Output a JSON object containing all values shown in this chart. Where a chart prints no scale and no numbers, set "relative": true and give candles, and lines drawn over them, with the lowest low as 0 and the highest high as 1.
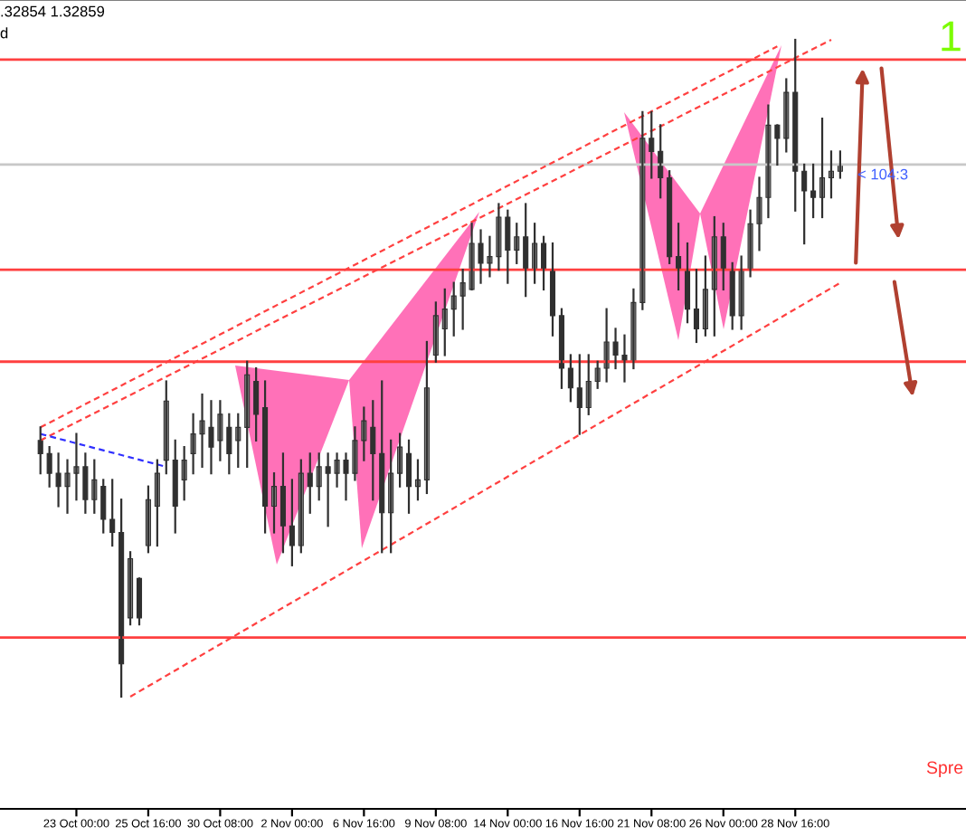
{
  "chart_data": {
    "type": "candlestick",
    "relative": true,
    "color": "#303030",
    "categories": [
      null,
      null,
      null,
      null,
      "23 Oct 00:00",
      null,
      null,
      null,
      null,
      null,
      null,
      null,
      "25 Oct 16:00",
      null,
      null,
      null,
      null,
      null,
      null,
      null,
      "30 Oct 08:00",
      null,
      null,
      null,
      null,
      null,
      null,
      null,
      "2 Nov 00:00",
      null,
      null,
      null,
      null,
      null,
      null,
      null,
      "6 Nov 16:00",
      null,
      null,
      null,
      null,
      null,
      null,
      null,
      "9 Nov 08:00",
      null,
      null,
      null,
      null,
      null,
      null,
      null,
      "14 Nov 00:00",
      null,
      null,
      null,
      null,
      null,
      null,
      null,
      "16 Nov 16:00",
      null,
      null,
      null,
      null,
      null,
      null,
      null,
      "21 Nov 08:00",
      null,
      null,
      null,
      null,
      null,
      null,
      null,
      "26 Nov 00:00",
      null,
      null,
      null,
      null,
      null,
      null,
      null,
      "28 Nov 16:00",
      null,
      null,
      null,
      null,
      null
    ],
    "ohlc": [
      [
        0.39,
        0.41,
        0.34,
        0.37
      ],
      [
        0.37,
        0.38,
        0.32,
        0.34
      ],
      [
        0.34,
        0.37,
        0.29,
        0.32
      ],
      [
        0.32,
        0.36,
        0.28,
        0.34
      ],
      [
        0.34,
        0.4,
        0.3,
        0.35
      ],
      [
        0.35,
        0.37,
        0.28,
        0.3
      ],
      [
        0.3,
        0.36,
        0.28,
        0.33
      ],
      [
        0.32,
        0.33,
        0.25,
        0.27
      ],
      [
        0.27,
        0.33,
        0.23,
        0.25
      ],
      [
        0.25,
        0.3,
        0.0,
        0.05
      ],
      [
        0.12,
        0.22,
        0.11,
        0.21
      ],
      [
        0.18,
        0.18,
        0.11,
        0.12
      ],
      [
        0.23,
        0.32,
        0.22,
        0.3
      ],
      [
        0.29,
        0.36,
        0.23,
        0.34
      ],
      [
        0.36,
        0.48,
        0.34,
        0.45
      ],
      [
        0.36,
        0.39,
        0.25,
        0.29
      ],
      [
        0.33,
        0.38,
        0.3,
        0.36
      ],
      [
        0.37,
        0.43,
        0.34,
        0.4
      ],
      [
        0.4,
        0.46,
        0.35,
        0.42
      ],
      [
        0.41,
        0.45,
        0.34,
        0.38
      ],
      [
        0.39,
        0.45,
        0.36,
        0.43
      ],
      [
        0.41,
        0.43,
        0.34,
        0.37
      ],
      [
        0.39,
        0.43,
        0.35,
        0.41
      ],
      [
        0.41,
        0.51,
        0.35,
        0.49
      ],
      [
        0.48,
        0.5,
        0.39,
        0.43
      ],
      [
        0.44,
        0.48,
        0.25,
        0.29
      ],
      [
        0.29,
        0.34,
        0.25,
        0.32
      ],
      [
        0.32,
        0.37,
        0.22,
        0.26
      ],
      [
        0.26,
        0.33,
        0.2,
        0.23
      ],
      [
        0.23,
        0.36,
        0.22,
        0.34
      ],
      [
        0.34,
        0.37,
        0.28,
        0.32
      ],
      [
        0.32,
        0.37,
        0.3,
        0.35
      ],
      [
        0.35,
        0.37,
        0.26,
        0.34
      ],
      [
        0.34,
        0.37,
        0.32,
        0.36
      ],
      [
        0.36,
        0.37,
        0.3,
        0.34
      ],
      [
        0.34,
        0.41,
        0.33,
        0.39
      ],
      [
        0.39,
        0.44,
        0.36,
        0.42
      ],
      [
        0.41,
        0.45,
        0.3,
        0.37
      ],
      [
        0.37,
        0.48,
        0.22,
        0.28
      ],
      [
        0.28,
        0.39,
        0.22,
        0.34
      ],
      [
        0.34,
        0.4,
        0.32,
        0.38
      ],
      [
        0.37,
        0.39,
        0.28,
        0.32
      ],
      [
        0.32,
        0.36,
        0.3,
        0.33
      ],
      [
        0.33,
        0.54,
        0.31,
        0.47
      ],
      [
        0.52,
        0.6,
        0.51,
        0.58
      ],
      [
        0.56,
        0.62,
        0.52,
        0.59
      ],
      [
        0.59,
        0.63,
        0.55,
        0.61
      ],
      [
        0.61,
        0.65,
        0.56,
        0.63
      ],
      [
        0.62,
        0.72,
        0.62,
        0.69
      ],
      [
        0.69,
        0.71,
        0.63,
        0.66
      ],
      [
        0.66,
        0.7,
        0.64,
        0.67
      ],
      [
        0.67,
        0.75,
        0.65,
        0.73
      ],
      [
        0.73,
        0.74,
        0.63,
        0.68
      ],
      [
        0.68,
        0.72,
        0.66,
        0.7
      ],
      [
        0.7,
        0.75,
        0.61,
        0.65
      ],
      [
        0.65,
        0.72,
        0.63,
        0.69
      ],
      [
        0.69,
        0.7,
        0.62,
        0.65
      ],
      [
        0.65,
        0.69,
        0.55,
        0.58
      ],
      [
        0.58,
        0.59,
        0.47,
        0.5
      ],
      [
        0.5,
        0.52,
        0.45,
        0.47
      ],
      [
        0.47,
        0.52,
        0.4,
        0.44
      ],
      [
        0.44,
        0.52,
        0.43,
        0.48
      ],
      [
        0.48,
        0.51,
        0.47,
        0.5
      ],
      [
        0.5,
        0.59,
        0.48,
        0.54
      ],
      [
        0.54,
        0.56,
        0.5,
        0.52
      ],
      [
        0.52,
        0.55,
        0.48,
        0.51
      ],
      [
        0.51,
        0.62,
        0.5,
        0.6
      ],
      [
        0.6,
        0.89,
        0.59,
        0.85
      ],
      [
        0.85,
        0.89,
        0.79,
        0.83
      ],
      [
        0.83,
        0.87,
        0.76,
        0.79
      ],
      [
        0.79,
        0.8,
        0.66,
        0.67
      ],
      [
        0.67,
        0.72,
        0.62,
        0.65
      ],
      [
        0.65,
        0.69,
        0.57,
        0.59
      ],
      [
        0.59,
        0.65,
        0.54,
        0.56
      ],
      [
        0.56,
        0.67,
        0.55,
        0.62
      ],
      [
        0.62,
        0.73,
        0.55,
        0.7
      ],
      [
        0.7,
        0.72,
        0.62,
        0.65
      ],
      [
        0.65,
        0.66,
        0.56,
        0.58
      ],
      [
        0.58,
        0.67,
        0.56,
        0.65
      ],
      [
        0.65,
        0.74,
        0.64,
        0.72
      ],
      [
        0.72,
        0.79,
        0.68,
        0.76
      ],
      [
        0.76,
        0.9,
        0.73,
        0.87
      ],
      [
        0.87,
        0.87,
        0.81,
        0.85
      ],
      [
        0.85,
        0.94,
        0.83,
        0.92
      ],
      [
        0.92,
        1.0,
        0.74,
        0.8
      ],
      [
        0.8,
        0.81,
        0.69,
        0.77
      ],
      [
        0.77,
        0.81,
        0.73,
        0.76
      ],
      [
        0.76,
        0.88,
        0.73,
        0.79
      ],
      [
        0.79,
        0.83,
        0.76,
        0.8
      ],
      [
        0.8,
        0.83,
        0.79,
        0.81
      ]
    ],
    "series": [
      {
        "type": "line",
        "line_style": "dashed",
        "color": "#ff4040",
        "values": [
          0.41,
          null,
          null,
          null,
          null,
          null,
          null,
          null,
          null,
          null,
          null,
          null,
          null,
          null,
          null,
          null,
          null,
          null,
          null,
          null,
          null,
          null,
          null,
          null,
          null,
          null,
          null,
          null,
          null,
          null,
          null,
          null,
          null,
          null,
          null,
          null,
          null,
          null,
          null,
          null,
          null,
          null,
          null,
          null,
          null,
          null,
          null,
          null,
          null,
          null,
          null,
          null,
          null,
          null,
          null,
          null,
          null,
          null,
          null,
          null,
          null,
          null,
          null,
          null,
          null,
          null,
          null,
          null,
          null,
          null,
          null,
          null,
          null,
          null,
          null,
          null,
          null,
          null,
          null,
          null,
          null,
          null,
          0.99,
          null,
          null,
          null,
          null,
          null,
          null,
          null
        ]
      },
      {
        "type": "line",
        "line_style": "dashed",
        "color": "#ff4040",
        "values": [
          0.39,
          null,
          null,
          null,
          null,
          null,
          null,
          null,
          null,
          null,
          null,
          null,
          null,
          null,
          null,
          null,
          null,
          null,
          null,
          null,
          null,
          null,
          null,
          null,
          null,
          null,
          null,
          null,
          null,
          null,
          null,
          null,
          null,
          null,
          null,
          null,
          null,
          null,
          null,
          null,
          null,
          null,
          null,
          null,
          null,
          null,
          null,
          null,
          null,
          null,
          null,
          null,
          null,
          null,
          null,
          null,
          null,
          null,
          null,
          null,
          null,
          null,
          null,
          null,
          null,
          null,
          null,
          null,
          null,
          null,
          null,
          null,
          null,
          null,
          null,
          null,
          null,
          null,
          null,
          null,
          null,
          null,
          null,
          null,
          null,
          null,
          null,
          null,
          1.0,
          null
        ]
      },
      {
        "type": "line",
        "line_style": "dashed",
        "color": "#ff4040",
        "values": [
          null,
          null,
          null,
          null,
          null,
          null,
          null,
          null,
          null,
          null,
          0.0,
          null,
          null,
          null,
          null,
          null,
          null,
          null,
          null,
          null,
          null,
          null,
          null,
          null,
          null,
          null,
          null,
          null,
          null,
          null,
          null,
          null,
          null,
          null,
          null,
          null,
          null,
          null,
          null,
          null,
          null,
          null,
          null,
          null,
          null,
          null,
          null,
          null,
          null,
          null,
          null,
          null,
          null,
          null,
          null,
          null,
          null,
          null,
          null,
          null,
          null,
          null,
          null,
          null,
          null,
          null,
          null,
          null,
          null,
          null,
          null,
          null,
          null,
          null,
          null,
          null,
          null,
          null,
          null,
          null,
          null,
          null,
          null,
          null,
          null,
          null,
          null,
          null,
          null,
          0.63
        ]
      },
      {
        "type": "line",
        "line_style": "dashed",
        "color": "#3030ff",
        "values": [
          0.4,
          null,
          null,
          null,
          null,
          null,
          null,
          null,
          null,
          null,
          null,
          null,
          null,
          null,
          0.35,
          null,
          null,
          null,
          null,
          null,
          null,
          null,
          null,
          null,
          null,
          null,
          null,
          null,
          null,
          null,
          null,
          null,
          null,
          null,
          null,
          null,
          null,
          null,
          null,
          null,
          null,
          null,
          null,
          null,
          null,
          null,
          null,
          null,
          null,
          null,
          null,
          null,
          null,
          null,
          null,
          null,
          null,
          null,
          null,
          null,
          null,
          null,
          null,
          null,
          null,
          null,
          null,
          null,
          null,
          null,
          null,
          null,
          null,
          null,
          null,
          null,
          null,
          null,
          null,
          null,
          null,
          null,
          null,
          null,
          null,
          null,
          null,
          null,
          null,
          null
        ]
      }
    ],
    "ref_lines": [
      {
        "axis": "y",
        "value": 0.97,
        "color": "#ff4040"
      },
      {
        "axis": "y",
        "value": 0.81,
        "color": "#c8c8c8"
      },
      {
        "axis": "y",
        "value": 0.65,
        "color": "#ff4040"
      },
      {
        "axis": "y",
        "value": 0.51,
        "color": "#ff4040"
      },
      {
        "axis": "y",
        "value": 0.09,
        "color": "#ff4040"
      }
    ],
    "grid": false,
    "legend": false,
    "annotations": [
      ".32854 1.32859",
      "d",
      "1",
      "Spre",
      "< 104:3"
    ]
  }
}
